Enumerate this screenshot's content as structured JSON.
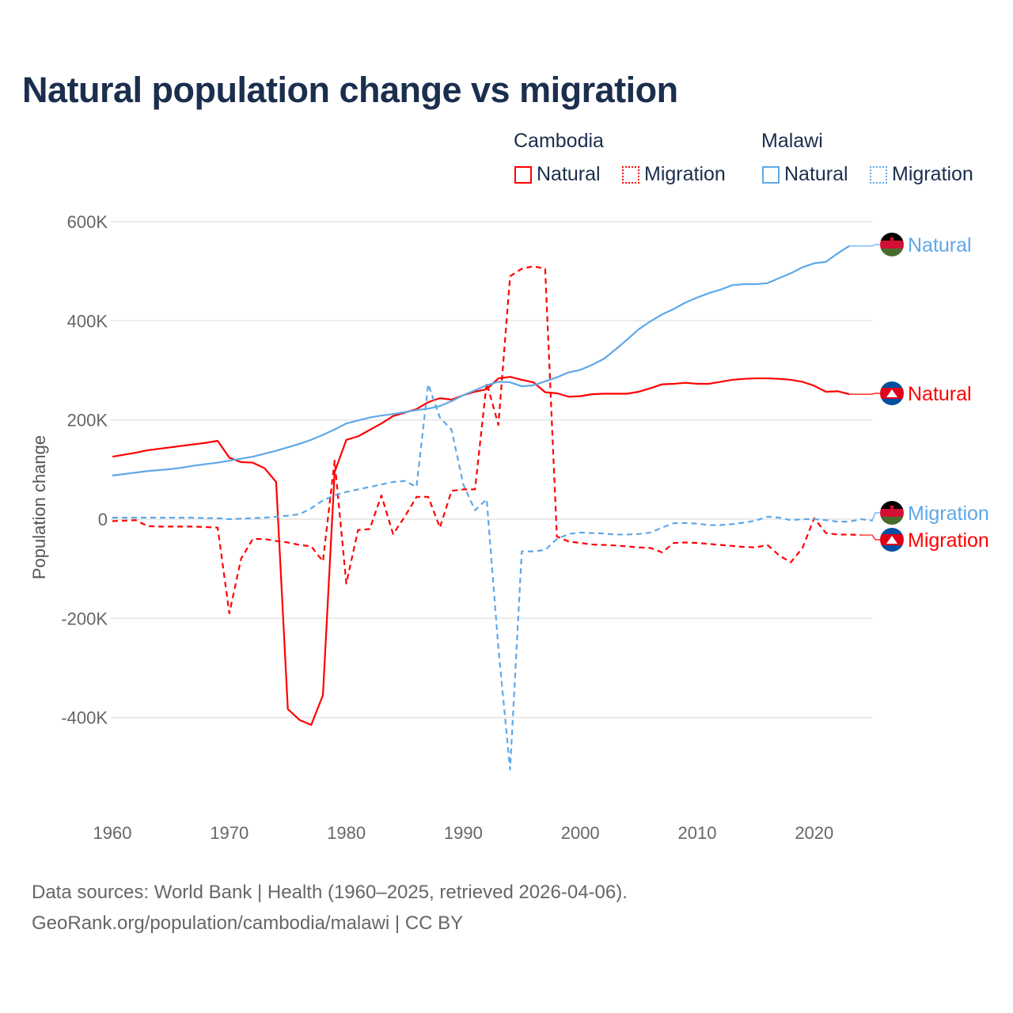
{
  "title": "Natural population change vs migration",
  "legend": {
    "groups": [
      {
        "name": "Cambodia",
        "items": [
          "Natural",
          "Migration"
        ]
      },
      {
        "name": "Malawi",
        "items": [
          "Natural",
          "Migration"
        ]
      }
    ]
  },
  "source": {
    "line1": "Data sources: World Bank | Health (1960–2025, retrieved 2026-04-06).",
    "line2": "GeoRank.org/population/cambodia/malawi | CC BY"
  },
  "colors": {
    "cambodia": "#ff0000",
    "malawi": "#5fa8e8"
  },
  "chart_data": {
    "type": "line",
    "title": "Natural population change vs migration",
    "xlabel": "",
    "ylabel": "Population change",
    "xlim": [
      1960,
      2025
    ],
    "ylim": [
      -550000,
      650000
    ],
    "x_ticks": [
      1960,
      1970,
      1980,
      1990,
      2000,
      2010,
      2020
    ],
    "y_ticks": [
      {
        "v": 600,
        "label": "600K"
      },
      {
        "v": 400,
        "label": "400K"
      },
      {
        "v": 200,
        "label": "200K"
      },
      {
        "v": 0,
        "label": "0"
      },
      {
        "v": -200,
        "label": "-200K"
      },
      {
        "v": -400,
        "label": "-400K"
      }
    ],
    "units": "thousands",
    "grid": true,
    "series": [
      {
        "name": "Cambodia Natural",
        "end_label": "Natural",
        "country": "cambodia",
        "style": "solid",
        "start": 1960,
        "values": [
          126,
          130,
          134,
          139,
          142,
          145,
          148,
          151,
          154,
          158,
          124,
          115,
          114,
          103,
          75,
          -383,
          -405,
          -415,
          -355,
          95,
          160,
          167,
          180,
          193,
          208,
          215,
          222,
          236,
          244,
          241,
          250,
          257,
          262,
          284,
          287,
          281,
          276,
          256,
          254,
          247,
          248,
          252,
          253,
          253,
          253,
          257,
          264,
          272,
          273,
          275,
          273,
          273,
          277,
          281,
          283,
          284,
          284,
          283,
          281,
          277,
          269,
          257,
          258,
          252
        ]
      },
      {
        "name": "Cambodia Migration",
        "end_label": "Migration",
        "country": "cambodia",
        "style": "dashed",
        "start": 1960,
        "values": [
          -4,
          -3,
          -2,
          -14,
          -15,
          -15,
          -15,
          -15,
          -16,
          -17,
          -190,
          -80,
          -40,
          -40,
          -44,
          -47,
          -52,
          -55,
          -85,
          118,
          -130,
          -22,
          -20,
          48,
          -30,
          5,
          45,
          45,
          -17,
          57,
          60,
          60,
          275,
          190,
          490,
          505,
          510,
          505,
          -35,
          -45,
          -48,
          -51,
          -52,
          -53,
          -55,
          -57,
          -58,
          -67,
          -48,
          -47,
          -48,
          -50,
          -52,
          -54,
          -56,
          -57,
          -52,
          -73,
          -87,
          -58,
          2,
          -28,
          -31,
          -31,
          -32
        ]
      },
      {
        "name": "Malawi Natural",
        "end_label": "Natural",
        "country": "malawi",
        "style": "solid",
        "start": 1960,
        "values": [
          88,
          91,
          94,
          97,
          99,
          101,
          104,
          108,
          111,
          114,
          118,
          122,
          126,
          132,
          138,
          145,
          152,
          160,
          170,
          181,
          193,
          199,
          205,
          209,
          212,
          216,
          220,
          223,
          228,
          238,
          250,
          260,
          270,
          277,
          276,
          268,
          270,
          278,
          286,
          296,
          301,
          311,
          323,
          342,
          362,
          383,
          399,
          413,
          424,
          437,
          447,
          456,
          463,
          472,
          474,
          474,
          476,
          486,
          496,
          508,
          516,
          519,
          536,
          551
        ]
      },
      {
        "name": "Malawi Migration",
        "end_label": "Migration",
        "country": "malawi",
        "style": "dashed",
        "start": 1960,
        "values": [
          3,
          3,
          3,
          3,
          3,
          3,
          3,
          3,
          2,
          2,
          0,
          1,
          2,
          3,
          5,
          7,
          10,
          22,
          38,
          48,
          55,
          60,
          65,
          70,
          75,
          77,
          65,
          272,
          205,
          180,
          70,
          18,
          40,
          -260,
          -505,
          -65,
          -65,
          -62,
          -40,
          -30,
          -27,
          -28,
          -29,
          -31,
          -31,
          -30,
          -27,
          -17,
          -8,
          -8,
          -9,
          -12,
          -12,
          -10,
          -7,
          -3,
          5,
          3,
          -2,
          0,
          0,
          -2,
          -5,
          -5,
          0,
          -3
        ]
      }
    ]
  }
}
